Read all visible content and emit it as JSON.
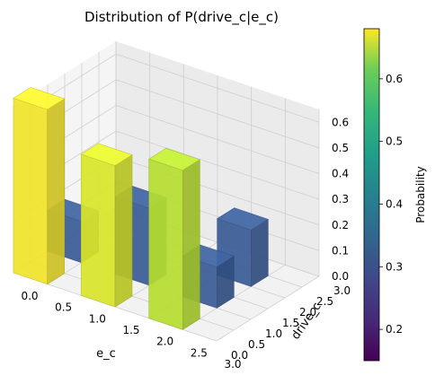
{
  "chart_data": {
    "type": "bar3d",
    "title": "Distribution of P(drive_c|e_c)",
    "xlabel": "e_c",
    "ylabel": "drive_c",
    "x_ticks": [
      "0.0",
      "0.5",
      "1.0",
      "1.5",
      "2.0",
      "2.5",
      "3.0"
    ],
    "y_ticks": [
      "0.0",
      "0.5",
      "1.0",
      "1.5",
      "2.0",
      "2.5",
      "3.0"
    ],
    "z_ticks": [
      "0.0",
      "0.1",
      "0.2",
      "0.3",
      "0.4",
      "0.5",
      "0.6"
    ],
    "xlim": [
      0,
      3
    ],
    "ylim": [
      0,
      3
    ],
    "zlim": [
      0,
      0.65
    ],
    "colormap": "viridis",
    "colorbar": {
      "label": "Probability",
      "range": [
        0.15,
        0.68
      ],
      "ticks": [
        "0.2",
        "0.3",
        "0.4",
        "0.5",
        "0.6"
      ]
    },
    "bars": [
      {
        "e_c": 0,
        "drive_c": 0,
        "p": 0.68,
        "color": "#f2e42a"
      },
      {
        "e_c": 0,
        "drive_c": 1,
        "p": 0.16,
        "color": "#3a5c96"
      },
      {
        "e_c": 1,
        "drive_c": 0,
        "p": 0.55,
        "color": "#d9e62a"
      },
      {
        "e_c": 1,
        "drive_c": 1,
        "p": 0.3,
        "color": "#3a5c96"
      },
      {
        "e_c": 2,
        "drive_c": 0,
        "p": 0.62,
        "color": "#b6de30"
      },
      {
        "e_c": 2,
        "drive_c": 1,
        "p": 0.16,
        "color": "#3a5c96"
      },
      {
        "e_c": 2,
        "drive_c": 2,
        "p": 0.22,
        "color": "#3a5c96"
      }
    ]
  }
}
